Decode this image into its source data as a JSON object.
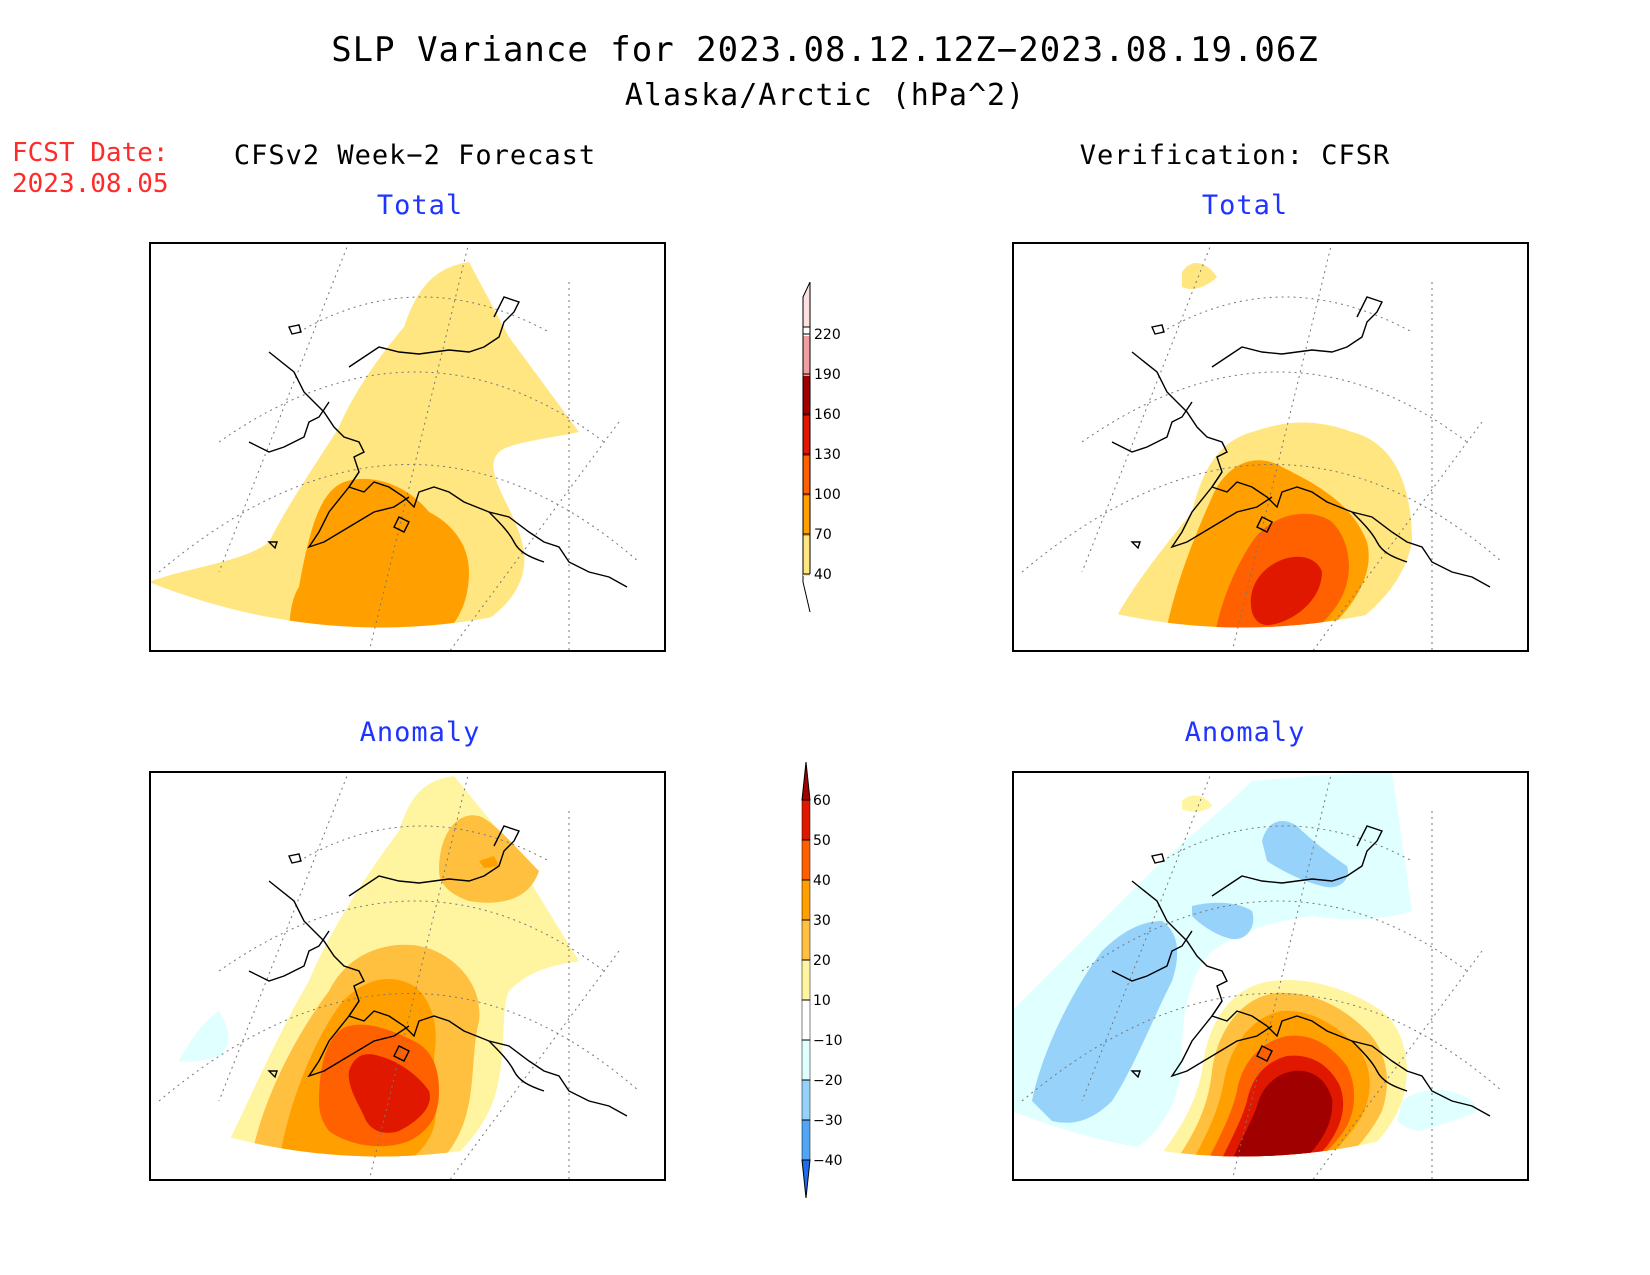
{
  "title": {
    "line1": "SLP Variance for 2023.08.12.12Z−2023.08.19.06Z",
    "line2": "Alaska/Arctic (hPa^2)"
  },
  "fcst_date": {
    "label": "FCST Date:",
    "value": "2023.08.05"
  },
  "columns": {
    "left": "CFSv2 Week−2 Forecast",
    "right": "Verification: CFSR"
  },
  "panels": {
    "forecast_total": "Total",
    "verification_total": "Total",
    "forecast_anomaly": "Anomaly",
    "verification_anomaly": "Anomaly"
  },
  "colorbars": {
    "total": {
      "labels": [
        "40",
        "70",
        "100",
        "130",
        "160",
        "190",
        "220"
      ],
      "colors": [
        "#ffe680",
        "#ffa000",
        "#ff6000",
        "#e01800",
        "#a00000",
        "#f0a0a0",
        "#ffe0e0"
      ]
    },
    "anomaly": {
      "labels": [
        "60",
        "50",
        "40",
        "30",
        "20",
        "10",
        "−10",
        "−20",
        "−30",
        "−40"
      ],
      "colors": [
        "#a00000",
        "#e01800",
        "#ff6000",
        "#ffa000",
        "#ffc040",
        "#fff5a0",
        "#ffffff",
        "#e0ffff",
        "#96d2fa",
        "#50a5f5",
        "#1e6eeb"
      ]
    }
  },
  "map_colors": {
    "yellow": "#ffe680",
    "orange": "#ffa000",
    "orange_red": "#ff6000",
    "red": "#e01800",
    "dark_red": "#a00000",
    "pale_yellow": "#fff5a0",
    "light_orange": "#ffc040",
    "light_cyan": "#e0ffff",
    "light_blue": "#96d2fa"
  }
}
